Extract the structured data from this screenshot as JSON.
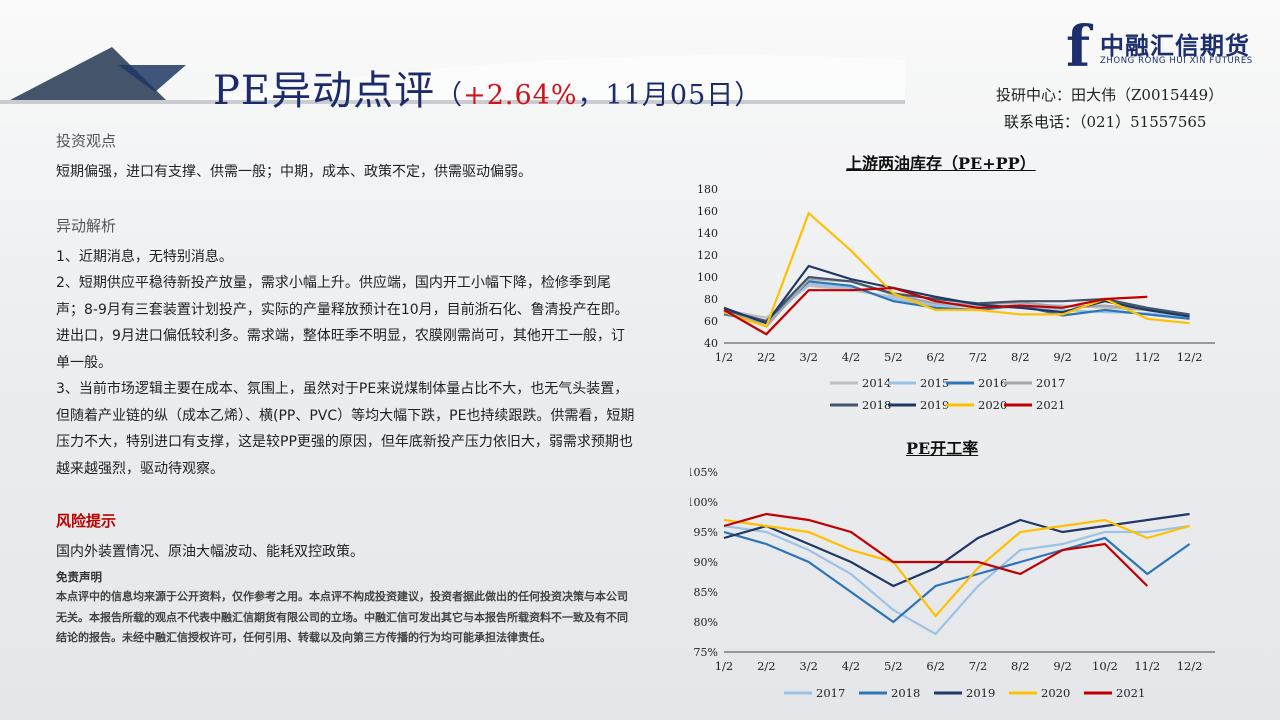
{
  "header": {
    "title_main": "PE异动点评",
    "title_paren_open": "（",
    "title_pct": "+2.64%",
    "title_rest": "，11月05日）",
    "contact_line1": "投研中心：田大伟（Z0015449）",
    "contact_line2": "联系电话：（021）51557565",
    "logo_cn": "中融汇信期货",
    "logo_en": "ZHONG RONG HUI XIN FUTURES"
  },
  "left": {
    "view_heading": "投资观点",
    "view_text": "短期偏强，进口有支撑、供需一般；中期，成本、政策不定，供需驱动偏弱。",
    "analysis_heading": "异动解析",
    "analysis_items": [
      "1、近期消息，无特别消息。",
      "2、短期供应平稳待新投产放量，需求小幅上升。供应端，国内开工小幅下降，检修季到尾声；8-9月有三套装置计划投产，实际的产量释放预计在10月，目前浙石化、鲁清投产在即。进出口，9月进口偏低较利多。需求端，整体旺季不明显，农膜刚需尚可，其他开工一般，订单一般。",
      "3、当前市场逻辑主要在成本、氛围上，虽然对于PE来说煤制体量占比不大，也无气头装置，但随着产业链的纵（成本乙烯）、横(PP、PVC）等均大幅下跌，PE也持续跟跌。供需看，短期压力不大，特别进口有支撑，这是较PP更强的原因，但年底新投产压力依旧大，弱需求预期也越来越强烈，驱动待观察。"
    ],
    "risk_heading": "风险提示",
    "risk_text": "国内外装置情况、原油大幅波动、能耗双控政策。",
    "disclaimer_heading": "免责声明",
    "disclaimer_text": "本点评中的信息均来源于公开资料，仅作参考之用。本点评不构成投资建议，投资者据此做出的任何投资决策与本公司无关。本报告所载的观点不代表中融汇信期货有限公司的立场。中融汇信可发出其它与本报告所载资料不一致及有不同结论的报告。未经中融汇信授权许可，任何引用、转载以及向第三方传播的行为均可能承担法律责任。"
  },
  "chart_data": [
    {
      "type": "line",
      "title": "上游两油库存（PE+PP）",
      "x": [
        "1/2",
        "2/2",
        "3/2",
        "4/2",
        "5/2",
        "6/2",
        "7/2",
        "8/2",
        "9/2",
        "10/2",
        "11/2",
        "12/2"
      ],
      "ylim": [
        40,
        180
      ],
      "yticks": [
        40,
        60,
        80,
        100,
        120,
        140,
        160,
        180
      ],
      "legend_position": "bottom",
      "series": [
        {
          "name": "2014",
          "color": "#bfbfbf",
          "values": [
            70,
            63,
            92,
            88,
            82,
            76,
            72,
            75,
            74,
            72,
            70,
            66
          ]
        },
        {
          "name": "2015",
          "color": "#9cc3e6",
          "values": [
            68,
            58,
            94,
            90,
            80,
            74,
            73,
            72,
            70,
            68,
            67,
            64
          ]
        },
        {
          "name": "2016",
          "color": "#2e75b6",
          "values": [
            66,
            60,
            96,
            92,
            78,
            72,
            70,
            74,
            65,
            70,
            66,
            62
          ]
        },
        {
          "name": "2017",
          "color": "#a5a5a5",
          "values": [
            72,
            55,
            98,
            96,
            84,
            76,
            75,
            77,
            73,
            74,
            70,
            65
          ]
        },
        {
          "name": "2018",
          "color": "#44546a",
          "values": [
            70,
            60,
            100,
            96,
            85,
            80,
            76,
            78,
            78,
            80,
            72,
            66
          ]
        },
        {
          "name": "2019",
          "color": "#1f3864",
          "values": [
            72,
            58,
            110,
            98,
            90,
            82,
            75,
            72,
            68,
            78,
            70,
            64
          ]
        },
        {
          "name": "2020",
          "color": "#ffc000",
          "values": [
            68,
            55,
            158,
            124,
            85,
            70,
            70,
            66,
            66,
            80,
            62,
            58
          ]
        },
        {
          "name": "2021",
          "color": "#c00000",
          "values": [
            70,
            48,
            88,
            88,
            90,
            78,
            72,
            74,
            72,
            80,
            82,
            null
          ]
        }
      ]
    },
    {
      "type": "line",
      "title": "PE开工率",
      "x": [
        "1/2",
        "2/2",
        "3/2",
        "4/2",
        "5/2",
        "6/2",
        "7/2",
        "8/2",
        "9/2",
        "10/2",
        "11/2",
        "12/2"
      ],
      "ylim": [
        75,
        105
      ],
      "yticks": [
        "75%",
        "80%",
        "85%",
        "90%",
        "95%",
        "100%",
        "105%"
      ],
      "legend_position": "bottom",
      "series": [
        {
          "name": "2017",
          "color": "#9cc3e6",
          "values": [
            96,
            95,
            92,
            88,
            82,
            78,
            86,
            92,
            93,
            95,
            95,
            96
          ]
        },
        {
          "name": "2018",
          "color": "#2e75b6",
          "values": [
            95,
            93,
            90,
            85,
            80,
            86,
            88,
            90,
            92,
            94,
            88,
            93
          ]
        },
        {
          "name": "2019",
          "color": "#1f3864",
          "values": [
            94,
            96,
            93,
            90,
            86,
            89,
            94,
            97,
            95,
            96,
            97,
            98
          ]
        },
        {
          "name": "2020",
          "color": "#ffc000",
          "values": [
            97,
            96,
            95,
            92,
            90,
            81,
            89,
            95,
            96,
            97,
            94,
            96
          ]
        },
        {
          "name": "2021",
          "color": "#c00000",
          "values": [
            96,
            98,
            97,
            95,
            90,
            90,
            90,
            88,
            92,
            93,
            86,
            null
          ]
        }
      ]
    }
  ]
}
